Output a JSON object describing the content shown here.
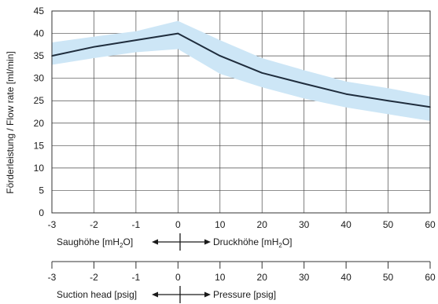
{
  "chart_data": {
    "type": "line",
    "ylabel": "Förderleistung / Flow rate [ml/min]",
    "ylim": [
      0,
      45
    ],
    "yticks": [
      0,
      5,
      10,
      15,
      20,
      25,
      30,
      35,
      40,
      45
    ],
    "grid": true,
    "x_ticks": [
      {
        "label": "-3",
        "value": -3
      },
      {
        "label": "-2",
        "value": -2
      },
      {
        "label": "-1",
        "value": -1
      },
      {
        "label": "0",
        "value": 0
      },
      {
        "label": "10",
        "value": 10
      },
      {
        "label": "20",
        "value": 20
      },
      {
        "label": "30",
        "value": 30
      },
      {
        "label": "40",
        "value": 40
      },
      {
        "label": "50",
        "value": 50
      },
      {
        "label": "60",
        "value": 60
      }
    ],
    "series": [
      {
        "color": "#1f2d3d",
        "points": [
          {
            "x": -3,
            "y": 35.0
          },
          {
            "x": -2,
            "y": 37.0
          },
          {
            "x": -1,
            "y": 38.5
          },
          {
            "x": 0,
            "y": 40.0
          },
          {
            "x": 10,
            "y": 35.0
          },
          {
            "x": 20,
            "y": 31.2
          },
          {
            "x": 30,
            "y": 28.8
          },
          {
            "x": 40,
            "y": 26.5
          },
          {
            "x": 50,
            "y": 25.0
          },
          {
            "x": 60,
            "y": 23.6
          }
        ]
      }
    ],
    "band": {
      "color": "#cde6f6",
      "upper": [
        {
          "x": -3,
          "y": 38.0
        },
        {
          "x": -2,
          "y": 39.3
        },
        {
          "x": -1,
          "y": 40.5
        },
        {
          "x": 0,
          "y": 42.8
        },
        {
          "x": 10,
          "y": 38.5
        },
        {
          "x": 20,
          "y": 34.5
        },
        {
          "x": 30,
          "y": 31.8
        },
        {
          "x": 40,
          "y": 29.3
        },
        {
          "x": 50,
          "y": 27.8
        },
        {
          "x": 60,
          "y": 26.0
        }
      ],
      "lower": [
        {
          "x": -3,
          "y": 33.0
        },
        {
          "x": -2,
          "y": 34.5
        },
        {
          "x": -1,
          "y": 35.8
        },
        {
          "x": 0,
          "y": 36.5
        },
        {
          "x": 10,
          "y": 31.0
        },
        {
          "x": 20,
          "y": 28.0
        },
        {
          "x": 30,
          "y": 25.5
        },
        {
          "x": 40,
          "y": 23.5
        },
        {
          "x": 50,
          "y": 22.0
        },
        {
          "x": 60,
          "y": 20.5
        }
      ]
    },
    "axis1": {
      "left_label": "Saughöhe [mH",
      "left_unit_tail": "O]",
      "right_label": "Druckhöhe [mH",
      "right_unit_tail": "O]",
      "subscript": "2"
    },
    "axis2": {
      "left_label": "Suction head [psig]",
      "right_label": "Pressure [psig]"
    }
  }
}
